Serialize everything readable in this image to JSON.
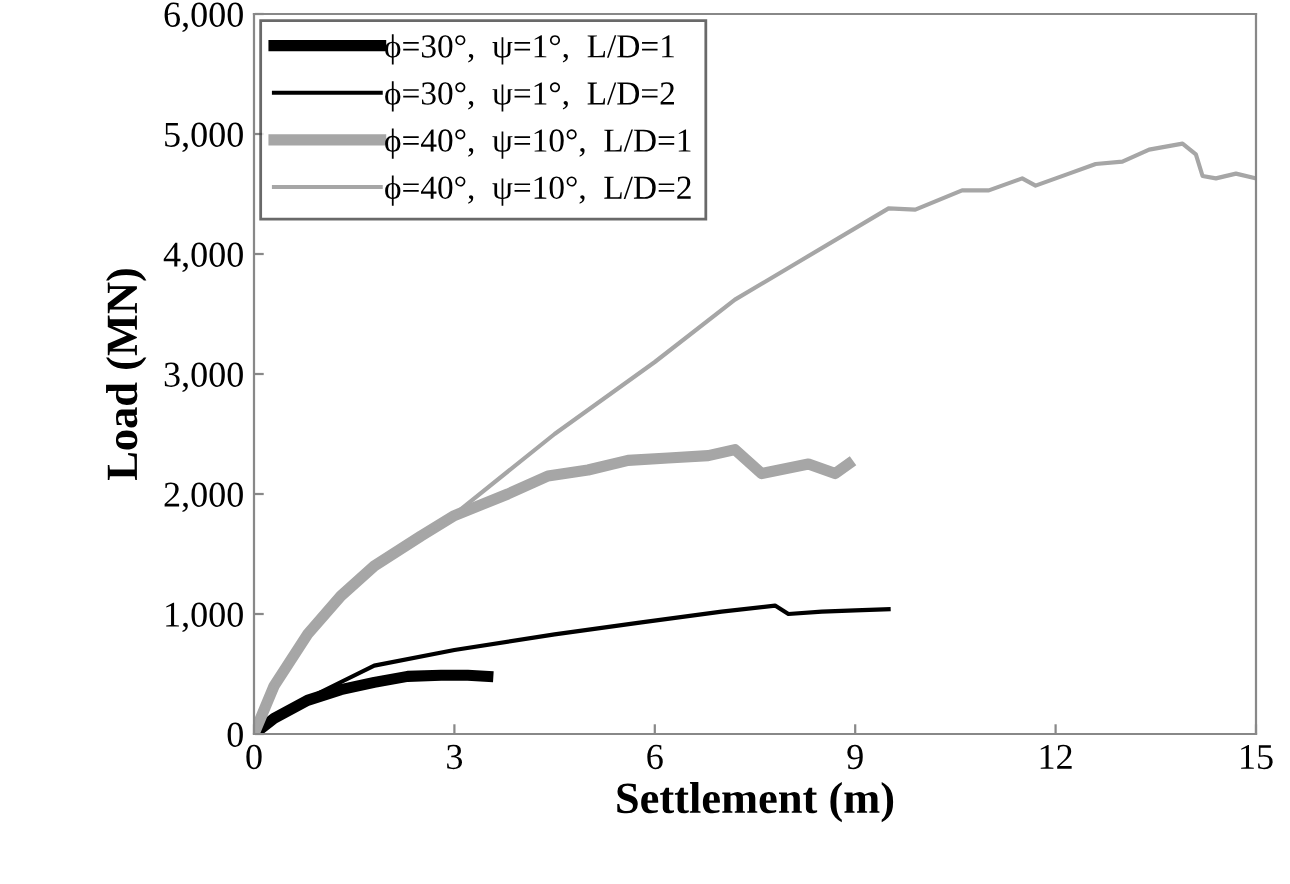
{
  "chart_data": {
    "type": "line",
    "xlabel": "Settlement (m)",
    "ylabel": "Load (MN)",
    "xlim": [
      0,
      15
    ],
    "xticks": [
      0,
      3,
      6,
      9,
      12,
      15
    ],
    "ylim": [
      0,
      6000
    ],
    "yticks": [
      0,
      {
        "value": 1000,
        "label": "1,000"
      },
      {
        "value": 2000,
        "label": "2,000"
      },
      {
        "value": 3000,
        "label": "3,000"
      },
      {
        "value": 4000,
        "label": "4,000"
      },
      {
        "value": 5000,
        "label": "5,000"
      },
      {
        "value": 6000,
        "label": "6,000"
      }
    ],
    "grid": false,
    "legend": "top left",
    "marker": "none",
    "line_style": "solid",
    "series": [
      {
        "name": "ϕ=30°,  ψ=1°,  L/D=1",
        "color": "#000000",
        "x": [
          0,
          0.3,
          0.8,
          1.3,
          1.8,
          2.3,
          2.8,
          3.2,
          3.5
        ],
        "values": [
          0,
          130,
          280,
          370,
          430,
          480,
          490,
          490,
          480
        ]
      },
      {
        "name": "ϕ=30°,  ψ=1°,  L/D=2",
        "color": "#000000",
        "x": [
          0,
          0.5,
          1,
          1.8,
          3,
          4.5,
          5.8,
          7,
          7.8,
          8,
          8.5,
          9,
          9.5
        ],
        "values": [
          0,
          200,
          350,
          570,
          700,
          830,
          930,
          1020,
          1070,
          1000,
          1020,
          1030,
          1040
        ]
      },
      {
        "name": "ϕ=40°,  ψ=10°,  L/D=1",
        "color": "#a6a6a6",
        "x": [
          0,
          0.3,
          0.8,
          1.3,
          1.8,
          2.5,
          3,
          3.8,
          4.4,
          5,
          5.6,
          6.2,
          6.8,
          7.2,
          7.6,
          8.3,
          8.7,
          8.9
        ],
        "values": [
          0,
          400,
          830,
          1150,
          1400,
          1650,
          1820,
          2000,
          2150,
          2200,
          2280,
          2300,
          2320,
          2370,
          2170,
          2250,
          2170,
          2250
        ]
      },
      {
        "name": "ϕ=40°,  ψ=10°,  L/D=2",
        "color": "#a6a6a6",
        "x": [
          0,
          0.3,
          0.8,
          1.8,
          3,
          4.5,
          6,
          7.2,
          8.2,
          9.5,
          9.9,
          10.6,
          11,
          11.5,
          11.7,
          12.2,
          12.6,
          13,
          13.4,
          13.9,
          14.1,
          14.2,
          14.4,
          14.7,
          15
        ],
        "values": [
          0,
          420,
          850,
          1420,
          1830,
          2500,
          3100,
          3620,
          3950,
          4380,
          4370,
          4530,
          4530,
          4630,
          4570,
          4670,
          4750,
          4770,
          4870,
          4920,
          4830,
          4650,
          4630,
          4670,
          4630
        ]
      }
    ]
  }
}
